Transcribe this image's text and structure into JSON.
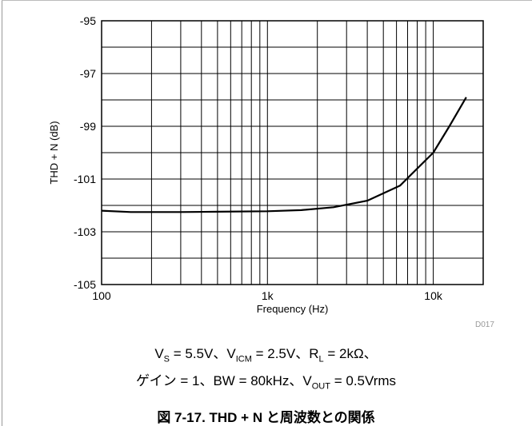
{
  "chart_data": {
    "type": "line",
    "xlabel": "Frequency (Hz)",
    "ylabel": "THD + N (dB)",
    "x_scale": "log",
    "xlim": [
      100,
      20000
    ],
    "ylim": [
      -105,
      -95
    ],
    "grid": true,
    "x_ticks": [
      {
        "value": 100,
        "label": "100"
      },
      {
        "value": 1000,
        "label": "1k"
      },
      {
        "value": 10000,
        "label": "10k"
      }
    ],
    "y_ticks": [
      {
        "value": -95,
        "label": "-95"
      },
      {
        "value": -97,
        "label": "-97"
      },
      {
        "value": -99,
        "label": "-99"
      },
      {
        "value": -101,
        "label": "-101"
      },
      {
        "value": -103,
        "label": "-103"
      },
      {
        "value": -105,
        "label": "-105"
      }
    ],
    "series": [
      {
        "x": [
          100,
          150,
          200,
          300,
          500,
          1000,
          1600,
          2500,
          4000,
          6300,
          10000,
          12500,
          15800
        ],
        "y": [
          -102.2,
          -102.25,
          -102.25,
          -102.25,
          -102.24,
          -102.22,
          -102.18,
          -102.07,
          -101.82,
          -101.25,
          -100.0,
          -99.0,
          -97.9
        ]
      }
    ]
  },
  "figure_code": "D017",
  "conditions": {
    "line1": {
      "vs_sym": "V",
      "vs_sub": "S",
      "vs_val": " = 5.5V、",
      "vicm_sym": "V",
      "vicm_sub": "ICM",
      "vicm_val": " = 2.5V、",
      "rl_sym": "R",
      "rl_sub": "L",
      "rl_val": " = 2kΩ、"
    },
    "line2": {
      "pre": "ゲイン = 1、BW = 80kHz、",
      "vout_sym": "V",
      "vout_sub": "OUT",
      "vout_val": " = 0.5Vrms"
    }
  },
  "caption": "図 7-17. THD + N と周波数との関係"
}
